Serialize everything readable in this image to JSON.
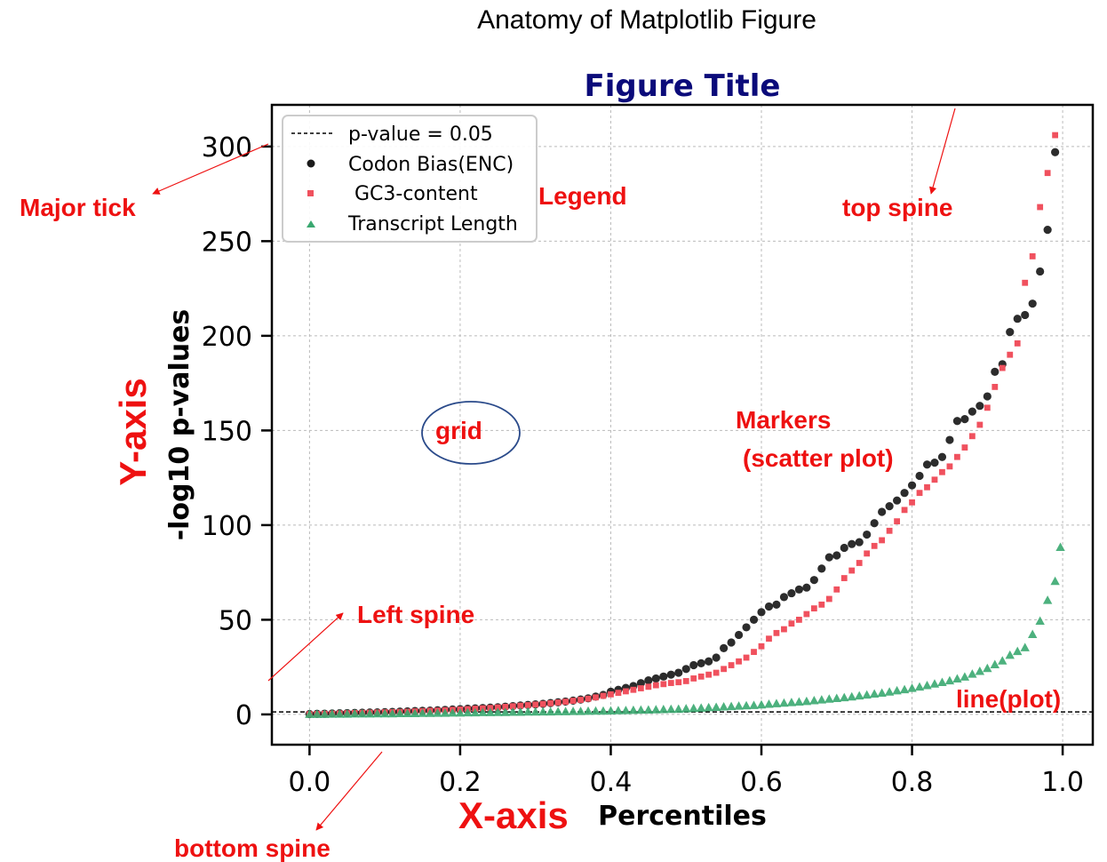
{
  "suptitle": "Anatomy of Matplotlib Figure",
  "chart_data": {
    "type": "scatter",
    "title": "Figure Title",
    "xlabel": "Percentiles",
    "ylabel": "-log10 p-values",
    "xlim": [
      -0.05,
      1.04
    ],
    "ylim": [
      -16,
      322
    ],
    "xticks": [
      0.0,
      0.2,
      0.4,
      0.6,
      0.8,
      1.0
    ],
    "xtick_labels": [
      "0.0",
      "0.2",
      "0.4",
      "0.6",
      "0.8",
      "1.0"
    ],
    "yticks": [
      0,
      50,
      100,
      150,
      200,
      250,
      300
    ],
    "ytick_labels": [
      "0",
      "50",
      "100",
      "150",
      "200",
      "250",
      "300"
    ],
    "grid": true,
    "legend_position": "top-left",
    "hline": {
      "label": "p-value = 0.05",
      "y": 1.3,
      "color": "#000000"
    },
    "series": [
      {
        "name": "Codon Bias(ENC)",
        "marker": "circle",
        "color": "#1a1a1a",
        "points": [
          [
            0.0,
            0.2
          ],
          [
            0.01,
            0.3
          ],
          [
            0.02,
            0.4
          ],
          [
            0.03,
            0.5
          ],
          [
            0.04,
            0.6
          ],
          [
            0.05,
            0.7
          ],
          [
            0.06,
            0.8
          ],
          [
            0.07,
            0.9
          ],
          [
            0.08,
            1.0
          ],
          [
            0.09,
            1.1
          ],
          [
            0.1,
            1.2
          ],
          [
            0.11,
            1.3
          ],
          [
            0.12,
            1.5
          ],
          [
            0.13,
            1.6
          ],
          [
            0.14,
            1.8
          ],
          [
            0.15,
            1.9
          ],
          [
            0.16,
            2.0
          ],
          [
            0.17,
            2.2
          ],
          [
            0.18,
            2.4
          ],
          [
            0.19,
            2.6
          ],
          [
            0.2,
            2.8
          ],
          [
            0.21,
            3.0
          ],
          [
            0.22,
            3.2
          ],
          [
            0.23,
            3.4
          ],
          [
            0.24,
            3.6
          ],
          [
            0.25,
            3.8
          ],
          [
            0.26,
            4.1
          ],
          [
            0.27,
            4.4
          ],
          [
            0.28,
            4.7
          ],
          [
            0.29,
            5.0
          ],
          [
            0.3,
            5.3
          ],
          [
            0.31,
            5.6
          ],
          [
            0.32,
            6.0
          ],
          [
            0.33,
            6.4
          ],
          [
            0.34,
            6.8
          ],
          [
            0.35,
            7.3
          ],
          [
            0.36,
            7.9
          ],
          [
            0.37,
            8.5
          ],
          [
            0.38,
            9.4
          ],
          [
            0.39,
            10.3
          ],
          [
            0.4,
            12
          ],
          [
            0.41,
            13
          ],
          [
            0.42,
            14
          ],
          [
            0.43,
            15
          ],
          [
            0.44,
            16.5
          ],
          [
            0.45,
            18
          ],
          [
            0.46,
            19
          ],
          [
            0.47,
            20
          ],
          [
            0.48,
            21
          ],
          [
            0.49,
            22
          ],
          [
            0.5,
            24
          ],
          [
            0.51,
            26
          ],
          [
            0.52,
            27
          ],
          [
            0.53,
            28
          ],
          [
            0.54,
            30
          ],
          [
            0.55,
            35
          ],
          [
            0.56,
            38
          ],
          [
            0.57,
            42
          ],
          [
            0.58,
            46
          ],
          [
            0.59,
            50
          ],
          [
            0.6,
            54
          ],
          [
            0.61,
            57
          ],
          [
            0.62,
            58
          ],
          [
            0.63,
            62
          ],
          [
            0.64,
            64
          ],
          [
            0.65,
            66
          ],
          [
            0.66,
            67
          ],
          [
            0.67,
            71
          ],
          [
            0.68,
            77
          ],
          [
            0.69,
            83
          ],
          [
            0.7,
            84
          ],
          [
            0.71,
            88
          ],
          [
            0.72,
            90
          ],
          [
            0.73,
            91
          ],
          [
            0.74,
            95
          ],
          [
            0.75,
            101
          ],
          [
            0.76,
            107
          ],
          [
            0.77,
            110
          ],
          [
            0.78,
            113
          ],
          [
            0.79,
            117
          ],
          [
            0.8,
            121
          ],
          [
            0.81,
            126
          ],
          [
            0.82,
            132
          ],
          [
            0.83,
            133
          ],
          [
            0.84,
            136
          ],
          [
            0.85,
            145
          ],
          [
            0.86,
            155
          ],
          [
            0.87,
            156
          ],
          [
            0.88,
            160
          ],
          [
            0.89,
            163
          ],
          [
            0.9,
            168
          ],
          [
            0.91,
            181
          ],
          [
            0.92,
            185
          ],
          [
            0.93,
            202
          ],
          [
            0.94,
            209
          ],
          [
            0.95,
            211
          ],
          [
            0.96,
            217
          ],
          [
            0.97,
            234
          ],
          [
            0.98,
            256
          ],
          [
            0.99,
            297
          ]
        ]
      },
      {
        "name": " GC3-content",
        "marker": "square",
        "color": "#f0515e",
        "points": [
          [
            0.0,
            0.1
          ],
          [
            0.01,
            0.2
          ],
          [
            0.02,
            0.3
          ],
          [
            0.03,
            0.4
          ],
          [
            0.04,
            0.5
          ],
          [
            0.05,
            0.6
          ],
          [
            0.06,
            0.7
          ],
          [
            0.07,
            0.8
          ],
          [
            0.08,
            0.9
          ],
          [
            0.09,
            1.0
          ],
          [
            0.1,
            1.1
          ],
          [
            0.11,
            1.2
          ],
          [
            0.12,
            1.3
          ],
          [
            0.13,
            1.4
          ],
          [
            0.14,
            1.6
          ],
          [
            0.15,
            1.7
          ],
          [
            0.16,
            1.9
          ],
          [
            0.17,
            2.0
          ],
          [
            0.18,
            2.2
          ],
          [
            0.19,
            2.4
          ],
          [
            0.2,
            2.6
          ],
          [
            0.21,
            2.8
          ],
          [
            0.22,
            3.0
          ],
          [
            0.23,
            3.2
          ],
          [
            0.24,
            3.4
          ],
          [
            0.25,
            3.7
          ],
          [
            0.26,
            4.0
          ],
          [
            0.27,
            4.3
          ],
          [
            0.28,
            4.6
          ],
          [
            0.29,
            4.9
          ],
          [
            0.3,
            5.2
          ],
          [
            0.31,
            5.5
          ],
          [
            0.32,
            5.9
          ],
          [
            0.33,
            6.3
          ],
          [
            0.34,
            6.7
          ],
          [
            0.35,
            7.2
          ],
          [
            0.36,
            7.7
          ],
          [
            0.37,
            8.3
          ],
          [
            0.38,
            9.0
          ],
          [
            0.39,
            9.8
          ],
          [
            0.4,
            10.6
          ],
          [
            0.41,
            11.4
          ],
          [
            0.42,
            12.2
          ],
          [
            0.43,
            13
          ],
          [
            0.44,
            13.8
          ],
          [
            0.45,
            14.6
          ],
          [
            0.46,
            15.4
          ],
          [
            0.47,
            16
          ],
          [
            0.48,
            16.6
          ],
          [
            0.49,
            17
          ],
          [
            0.5,
            17.6
          ],
          [
            0.51,
            19
          ],
          [
            0.52,
            20
          ],
          [
            0.53,
            21
          ],
          [
            0.54,
            22
          ],
          [
            0.55,
            24
          ],
          [
            0.56,
            26
          ],
          [
            0.57,
            28
          ],
          [
            0.58,
            30
          ],
          [
            0.59,
            33
          ],
          [
            0.6,
            36
          ],
          [
            0.61,
            40
          ],
          [
            0.62,
            43
          ],
          [
            0.63,
            45
          ],
          [
            0.64,
            48
          ],
          [
            0.65,
            50
          ],
          [
            0.66,
            53
          ],
          [
            0.67,
            56
          ],
          [
            0.68,
            58
          ],
          [
            0.69,
            61
          ],
          [
            0.7,
            66
          ],
          [
            0.71,
            72
          ],
          [
            0.72,
            76
          ],
          [
            0.73,
            80
          ],
          [
            0.74,
            85
          ],
          [
            0.75,
            89
          ],
          [
            0.76,
            92
          ],
          [
            0.77,
            97
          ],
          [
            0.78,
            102
          ],
          [
            0.79,
            108
          ],
          [
            0.8,
            112
          ],
          [
            0.81,
            117
          ],
          [
            0.82,
            120
          ],
          [
            0.83,
            124
          ],
          [
            0.84,
            128
          ],
          [
            0.85,
            131
          ],
          [
            0.86,
            136
          ],
          [
            0.87,
            141
          ],
          [
            0.88,
            147
          ],
          [
            0.89,
            153
          ],
          [
            0.9,
            162
          ],
          [
            0.91,
            173
          ],
          [
            0.92,
            183
          ],
          [
            0.93,
            190
          ],
          [
            0.94,
            196
          ],
          [
            0.95,
            228
          ],
          [
            0.96,
            242
          ],
          [
            0.97,
            268
          ],
          [
            0.98,
            286
          ],
          [
            0.99,
            306
          ]
        ]
      },
      {
        "name": "Transcript Length",
        "marker": "triangle",
        "color": "#3aa870",
        "points": [
          [
            0.0,
            -0.2
          ],
          [
            0.01,
            -0.2
          ],
          [
            0.02,
            -0.2
          ],
          [
            0.03,
            -0.1
          ],
          [
            0.04,
            -0.1
          ],
          [
            0.05,
            -0.1
          ],
          [
            0.06,
            0.0
          ],
          [
            0.07,
            0.0
          ],
          [
            0.08,
            0.0
          ],
          [
            0.09,
            0.1
          ],
          [
            0.1,
            0.1
          ],
          [
            0.11,
            0.1
          ],
          [
            0.12,
            0.2
          ],
          [
            0.13,
            0.2
          ],
          [
            0.14,
            0.2
          ],
          [
            0.15,
            0.3
          ],
          [
            0.16,
            0.3
          ],
          [
            0.17,
            0.4
          ],
          [
            0.18,
            0.4
          ],
          [
            0.19,
            0.5
          ],
          [
            0.2,
            0.5
          ],
          [
            0.21,
            0.6
          ],
          [
            0.22,
            0.6
          ],
          [
            0.23,
            0.7
          ],
          [
            0.24,
            0.7
          ],
          [
            0.25,
            0.8
          ],
          [
            0.26,
            0.8
          ],
          [
            0.27,
            0.9
          ],
          [
            0.28,
            0.9
          ],
          [
            0.29,
            1.0
          ],
          [
            0.3,
            1.0
          ],
          [
            0.31,
            1.1
          ],
          [
            0.32,
            1.1
          ],
          [
            0.33,
            1.2
          ],
          [
            0.34,
            1.2
          ],
          [
            0.35,
            1.3
          ],
          [
            0.36,
            1.3
          ],
          [
            0.37,
            1.4
          ],
          [
            0.38,
            1.5
          ],
          [
            0.39,
            1.5
          ],
          [
            0.4,
            1.6
          ],
          [
            0.41,
            1.7
          ],
          [
            0.42,
            1.8
          ],
          [
            0.43,
            1.9
          ],
          [
            0.44,
            2.0
          ],
          [
            0.45,
            2.1
          ],
          [
            0.46,
            2.2
          ],
          [
            0.47,
            2.3
          ],
          [
            0.48,
            2.4
          ],
          [
            0.49,
            2.5
          ],
          [
            0.5,
            2.7
          ],
          [
            0.51,
            2.9
          ],
          [
            0.52,
            3.1
          ],
          [
            0.53,
            3.3
          ],
          [
            0.54,
            3.5
          ],
          [
            0.55,
            3.7
          ],
          [
            0.56,
            3.9
          ],
          [
            0.57,
            4.1
          ],
          [
            0.58,
            4.3
          ],
          [
            0.59,
            4.5
          ],
          [
            0.6,
            4.8
          ],
          [
            0.61,
            5.1
          ],
          [
            0.62,
            5.4
          ],
          [
            0.63,
            5.7
          ],
          [
            0.64,
            6.0
          ],
          [
            0.65,
            6.3
          ],
          [
            0.66,
            6.6
          ],
          [
            0.67,
            7.0
          ],
          [
            0.68,
            7.4
          ],
          [
            0.69,
            7.8
          ],
          [
            0.7,
            8.2
          ],
          [
            0.71,
            8.6
          ],
          [
            0.72,
            9.0
          ],
          [
            0.73,
            9.5
          ],
          [
            0.74,
            10.0
          ],
          [
            0.75,
            10.5
          ],
          [
            0.76,
            11.0
          ],
          [
            0.77,
            11.6
          ],
          [
            0.78,
            12.2
          ],
          [
            0.79,
            12.8
          ],
          [
            0.8,
            13.5
          ],
          [
            0.81,
            14.2
          ],
          [
            0.82,
            15
          ],
          [
            0.83,
            15.8
          ],
          [
            0.84,
            16.6
          ],
          [
            0.85,
            17.5
          ],
          [
            0.86,
            18.5
          ],
          [
            0.87,
            19.5
          ],
          [
            0.88,
            21
          ],
          [
            0.89,
            22.5
          ],
          [
            0.9,
            24
          ],
          [
            0.91,
            26
          ],
          [
            0.92,
            28
          ],
          [
            0.93,
            31
          ],
          [
            0.94,
            33
          ],
          [
            0.95,
            35
          ],
          [
            0.96,
            42
          ],
          [
            0.97,
            49
          ],
          [
            0.98,
            60
          ],
          [
            0.99,
            70
          ]
        ]
      }
    ]
  },
  "extra_points": {
    "Transcript Length": [
      [
        0.997,
        88
      ]
    ]
  },
  "annotations": {
    "major_tick": "Major tick",
    "legend": "Legend",
    "top_spine": "top spine",
    "y_axis": "Y-axis",
    "grid": "grid",
    "markers_line1": "Markers",
    "markers_line2": "(scatter plot)",
    "left_spine": "Left spine",
    "line_plot": "line(plot)",
    "x_axis": "X-axis",
    "bottom_spine": "bottom spine"
  },
  "colors": {
    "title": "#0b0b7a",
    "annotation": "#ee1111",
    "grid_ellipse": "#2a4a8a",
    "grid_line": "#bbbbbb"
  }
}
